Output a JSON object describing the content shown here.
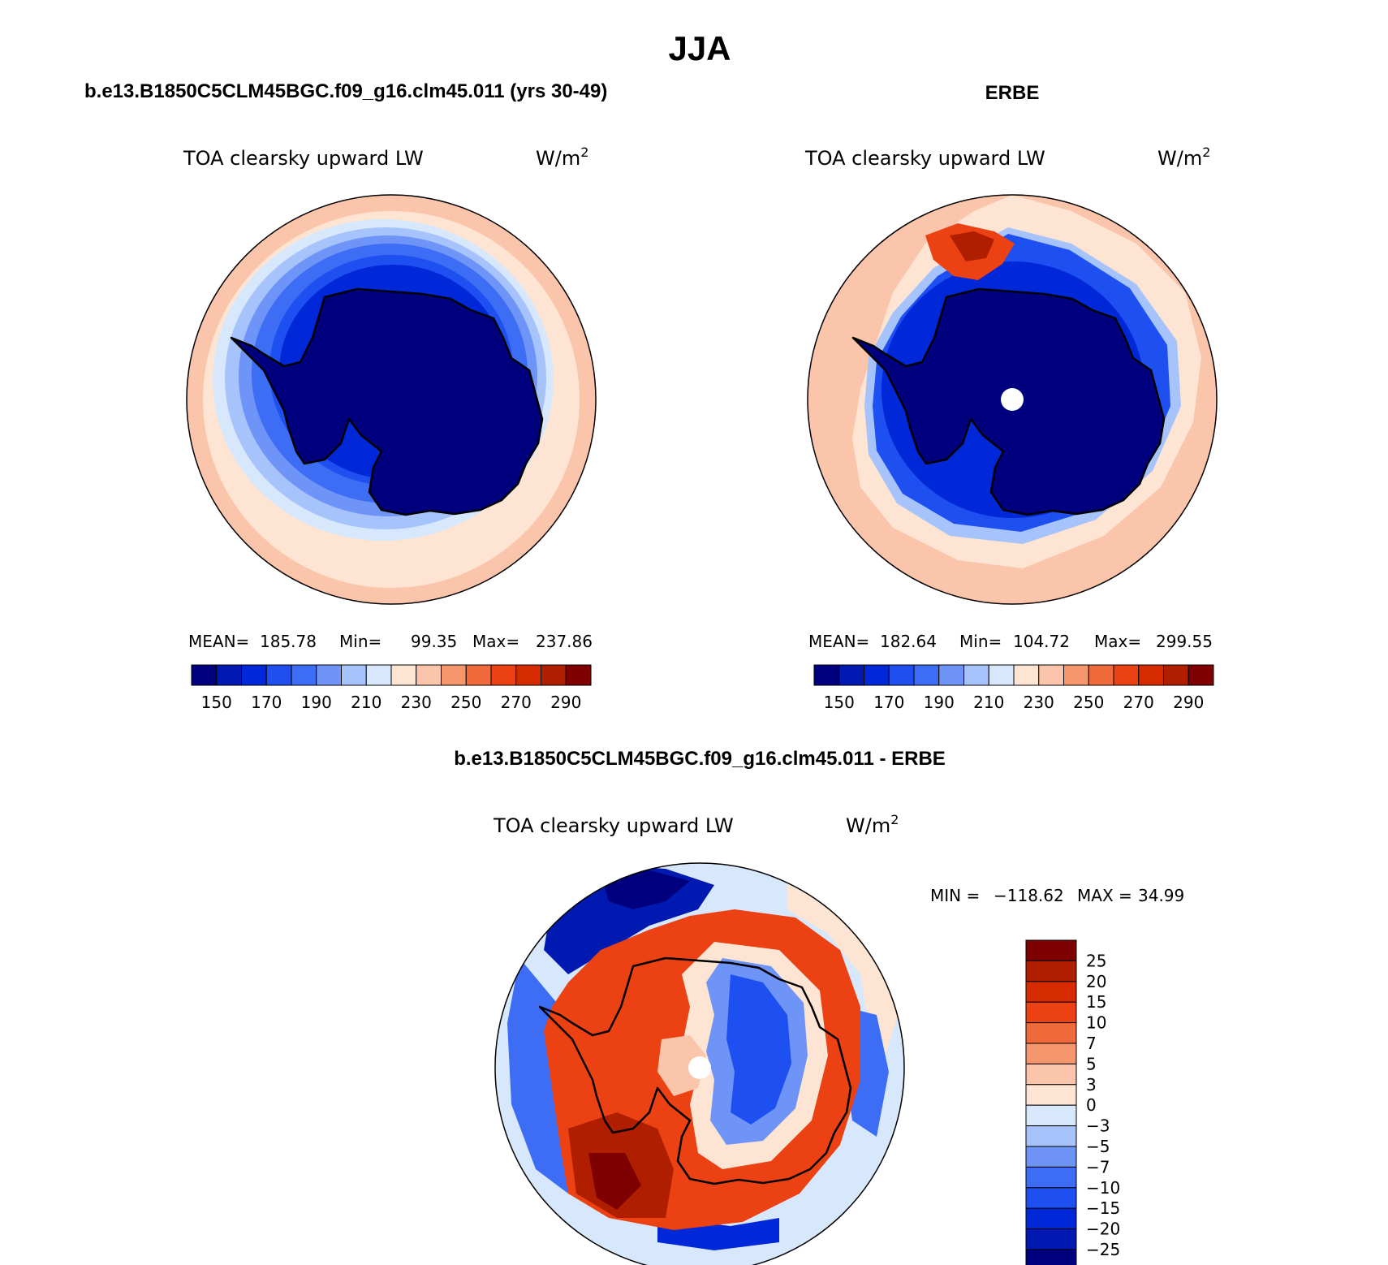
{
  "page_title": "JJA",
  "colors": {
    "background": "#ffffff",
    "coast": "#000000",
    "missing": "#ffffff"
  },
  "abs_palette": [
    "#00007f",
    "#0019b0",
    "#0028d9",
    "#1e4ff0",
    "#3d6cf5",
    "#6f94f7",
    "#a7c3fb",
    "#d8e8fc",
    "#fde4d3",
    "#fbc5ab",
    "#f5966c",
    "#f16a3c",
    "#ec4112",
    "#d62b00",
    "#b01e00",
    "#7e0000"
  ],
  "diff_palette": [
    "#7e0000",
    "#b01e00",
    "#d62b00",
    "#ec4112",
    "#f16a3c",
    "#f5966c",
    "#fbc5ab",
    "#fde4d3",
    "#d8e8fc",
    "#a7c3fb",
    "#6f94f7",
    "#3d6cf5",
    "#1e4ff0",
    "#0028d9",
    "#0019b0",
    "#00007f"
  ],
  "panels": {
    "model": {
      "heading": "b.e13.B1850C5CLM45BGC.f09_g16.clm45.011 (yrs 30-49)",
      "variable": "TOA clearsky upward LW",
      "units_base": "W/m",
      "units_exp": "2",
      "stats": {
        "mean_label": "MEAN=",
        "mean": "185.78",
        "min_label": "Min=",
        "min": "99.35",
        "max_label": "Max=",
        "max": "237.86"
      },
      "colorbar_labels": [
        "150",
        "170",
        "190",
        "210",
        "230",
        "250",
        "270",
        "290"
      ]
    },
    "obs": {
      "heading": "ERBE",
      "variable": "TOA clearsky upward LW",
      "units_base": "W/m",
      "units_exp": "2",
      "stats": {
        "mean_label": "MEAN=",
        "mean": "182.64",
        "min_label": "Min=",
        "min": "104.72",
        "max_label": "Max=",
        "max": "299.55"
      },
      "colorbar_labels": [
        "150",
        "170",
        "190",
        "210",
        "230",
        "250",
        "270",
        "290"
      ]
    },
    "diff": {
      "heading": "b.e13.B1850C5CLM45BGC.f09_g16.clm45.011 - ERBE",
      "variable": "TOA clearsky upward LW",
      "units_base": "W/m",
      "units_exp": "2",
      "stats": {
        "min_label": "MIN =",
        "min": "−118.62",
        "max_label": "MAX =",
        "max": "34.99"
      },
      "colorbar_labels": [
        "25",
        "20",
        "15",
        "10",
        "7",
        "5",
        "3",
        "0",
        "−3",
        "−5",
        "−7",
        "−10",
        "−15",
        "−20",
        "−25"
      ]
    }
  }
}
